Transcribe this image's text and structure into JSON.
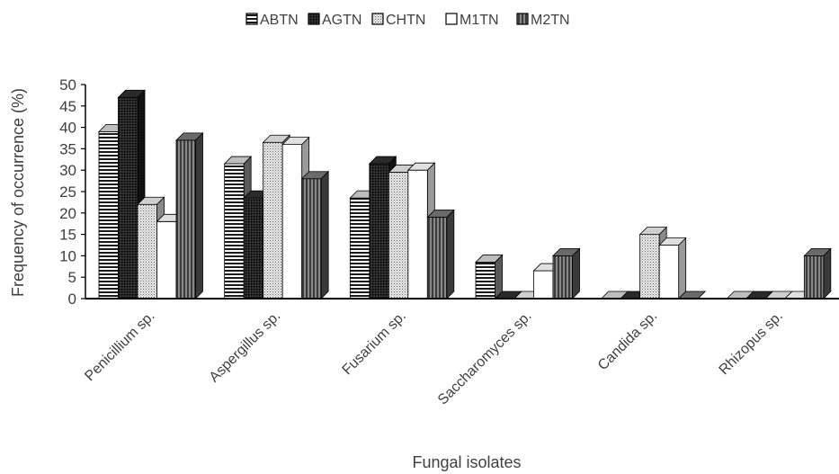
{
  "chart_data": {
    "type": "bar",
    "title": "",
    "xlabel": "Fungal isolates",
    "ylabel": "Frequency of occurrence (%)",
    "ylim": [
      0,
      50
    ],
    "yticks": [
      "0",
      "5",
      "10",
      "15",
      "20",
      "25",
      "30",
      "35",
      "40",
      "45",
      "50"
    ],
    "categories": [
      "Penicillium sp.",
      "Aspergillus sp.",
      "Fusarium sp.",
      "Saccharomyces sp.",
      "Candida sp.",
      "Rhizopus sp."
    ],
    "legend_position": "top",
    "series": [
      {
        "name": "ABTN",
        "values": [
          39,
          31.5,
          23.5,
          8.5,
          0,
          0
        ]
      },
      {
        "name": "AGTN",
        "values": [
          47,
          23.5,
          31.5,
          0,
          0,
          0
        ]
      },
      {
        "name": "CHTN",
        "values": [
          22,
          36.5,
          29.5,
          0,
          15,
          0
        ]
      },
      {
        "name": "M1TN",
        "values": [
          18,
          36,
          30,
          6.5,
          12.5,
          0
        ]
      },
      {
        "name": "M2TN",
        "values": [
          37,
          28,
          19,
          10,
          0,
          10
        ]
      }
    ]
  }
}
